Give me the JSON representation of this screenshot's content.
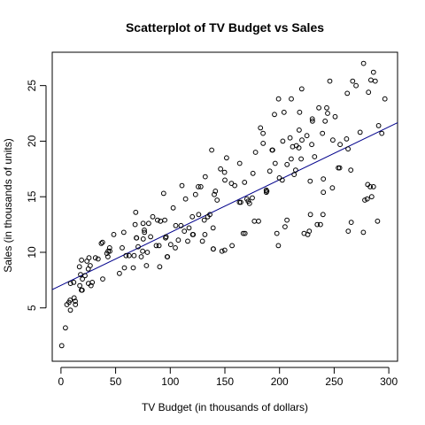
{
  "chart_data": {
    "type": "scatter",
    "title": "Scatterplot of TV Budget vs Sales",
    "xlabel": "TV Budget (in thousands of dollars)",
    "ylabel": "Sales (in thousands of units)",
    "xlim": [
      -8,
      308
    ],
    "ylim": [
      0.2,
      28.0
    ],
    "xticks": [
      0,
      50,
      100,
      150,
      200,
      250,
      300
    ],
    "yticks": [
      5,
      10,
      15,
      20,
      25
    ],
    "grid": false,
    "legend": "none",
    "marker": "open-circle",
    "point_color": "#000000",
    "fit_line": {
      "intercept": 7.03,
      "slope": 0.0475,
      "color": "#00008b"
    },
    "points": [
      [
        0.7,
        1.6
      ],
      [
        4.1,
        3.2
      ],
      [
        5.4,
        5.3
      ],
      [
        7.3,
        5.5
      ],
      [
        8.4,
        5.7
      ],
      [
        8.6,
        4.8
      ],
      [
        8.7,
        7.2
      ],
      [
        11.7,
        7.3
      ],
      [
        13.1,
        5.6
      ],
      [
        13.2,
        5.3
      ],
      [
        16.9,
        8.7
      ],
      [
        17.2,
        7.0
      ],
      [
        17.9,
        8.0
      ],
      [
        18.7,
        6.6
      ],
      [
        18.8,
        9.3
      ],
      [
        19.4,
        6.6
      ],
      [
        19.6,
        7.6
      ],
      [
        23.8,
        9.2
      ],
      [
        25.0,
        8.5
      ],
      [
        25.1,
        7.2
      ],
      [
        25.6,
        9.5
      ],
      [
        26.8,
        8.8
      ],
      [
        27.5,
        7.0
      ],
      [
        28.6,
        7.3
      ],
      [
        31.5,
        9.5
      ],
      [
        36.9,
        10.8
      ],
      [
        38.0,
        10.9
      ],
      [
        38.2,
        7.6
      ],
      [
        43.0,
        9.6
      ],
      [
        43.1,
        10.1
      ],
      [
        44.5,
        10.4
      ],
      [
        44.7,
        10.1
      ],
      [
        48.3,
        11.6
      ],
      [
        53.5,
        8.1
      ],
      [
        57.5,
        11.8
      ],
      [
        59.6,
        9.7
      ],
      [
        62.3,
        9.7
      ],
      [
        66.1,
        8.6
      ],
      [
        66.9,
        9.7
      ],
      [
        67.8,
        12.5
      ],
      [
        68.4,
        13.6
      ],
      [
        69.0,
        11.3
      ],
      [
        69.2,
        11.3
      ],
      [
        70.6,
        10.5
      ],
      [
        73.4,
        9.6
      ],
      [
        74.7,
        10.1
      ],
      [
        75.1,
        12.6
      ],
      [
        75.3,
        11.2
      ],
      [
        76.3,
        12.0
      ],
      [
        76.4,
        11.8
      ],
      [
        78.2,
        8.8
      ],
      [
        80.2,
        12.6
      ],
      [
        87.2,
        10.6
      ],
      [
        88.3,
        12.9
      ],
      [
        89.7,
        10.6
      ],
      [
        90.4,
        8.7
      ],
      [
        93.9,
        15.3
      ],
      [
        95.7,
        11.3
      ],
      [
        96.2,
        11.4
      ],
      [
        97.2,
        9.6
      ],
      [
        97.5,
        9.6
      ],
      [
        100.4,
        10.7
      ],
      [
        102.7,
        14.0
      ],
      [
        104.6,
        10.4
      ],
      [
        107.4,
        11.1
      ],
      [
        109.8,
        12.4
      ],
      [
        110.7,
        16.0
      ],
      [
        112.9,
        11.9
      ],
      [
        116.0,
        11.0
      ],
      [
        117.2,
        12.2
      ],
      [
        120.2,
        13.2
      ],
      [
        120.5,
        11.6
      ],
      [
        121.0,
        11.6
      ],
      [
        123.1,
        15.2
      ],
      [
        125.7,
        15.9
      ],
      [
        129.4,
        11.0
      ],
      [
        131.1,
        12.9
      ],
      [
        131.7,
        11.6
      ],
      [
        134.3,
        13.2
      ],
      [
        136.2,
        13.4
      ],
      [
        137.9,
        19.2
      ],
      [
        139.2,
        12.2
      ],
      [
        139.3,
        10.3
      ],
      [
        139.5,
        10.3
      ],
      [
        140.3,
        15.2
      ],
      [
        141.3,
        15.5
      ],
      [
        142.9,
        14.7
      ],
      [
        147.3,
        10.1
      ],
      [
        149.7,
        17.2
      ],
      [
        149.8,
        10.2
      ],
      [
        151.5,
        18.5
      ],
      [
        156.6,
        10.6
      ],
      [
        163.3,
        14.5
      ],
      [
        163.5,
        18.0
      ],
      [
        164.5,
        14.5
      ],
      [
        166.8,
        11.7
      ],
      [
        168.4,
        11.7
      ],
      [
        170.2,
        14.8
      ],
      [
        171.3,
        14.6
      ],
      [
        172.5,
        14.4
      ],
      [
        175.1,
        14.9
      ],
      [
        175.7,
        17.1
      ],
      [
        177.0,
        12.8
      ],
      [
        180.8,
        12.8
      ],
      [
        182.6,
        21.2
      ],
      [
        184.9,
        20.7
      ],
      [
        187.8,
        15.6
      ],
      [
        187.9,
        15.4
      ],
      [
        188.4,
        15.5
      ],
      [
        191.1,
        17.3
      ],
      [
        193.2,
        19.2
      ],
      [
        193.7,
        19.2
      ],
      [
        195.4,
        22.4
      ],
      [
        197.6,
        11.7
      ],
      [
        198.9,
        10.6
      ],
      [
        199.8,
        16.7
      ],
      [
        199.1,
        23.8
      ],
      [
        202.5,
        16.5
      ],
      [
        204.1,
        22.6
      ],
      [
        205.0,
        12.3
      ],
      [
        206.8,
        12.9
      ],
      [
        206.9,
        17.9
      ],
      [
        209.6,
        20.3
      ],
      [
        210.7,
        18.4
      ],
      [
        210.8,
        23.8
      ],
      [
        213.4,
        17.0
      ],
      [
        214.7,
        17.4
      ],
      [
        215.4,
        19.6
      ],
      [
        217.7,
        19.4
      ],
      [
        218.4,
        22.6
      ],
      [
        219.8,
        18.4
      ],
      [
        220.3,
        24.7
      ],
      [
        220.5,
        20.1
      ],
      [
        222.4,
        11.7
      ],
      [
        225.8,
        11.6
      ],
      [
        227.2,
        11.9
      ],
      [
        228.0,
        16.4
      ],
      [
        228.3,
        13.4
      ],
      [
        229.5,
        19.7
      ],
      [
        230.1,
        21.8
      ],
      [
        232.1,
        18.6
      ],
      [
        234.5,
        12.5
      ],
      [
        237.4,
        12.5
      ],
      [
        239.3,
        20.7
      ],
      [
        239.8,
        13.4
      ],
      [
        240.1,
        16.6
      ],
      [
        240.1,
        15.4
      ],
      [
        241.7,
        21.8
      ],
      [
        243.2,
        23.0
      ],
      [
        248.4,
        15.8
      ],
      [
        248.8,
        20.1
      ],
      [
        250.9,
        22.2
      ],
      [
        253.8,
        17.6
      ],
      [
        255.4,
        19.7
      ],
      [
        261.3,
        20.2
      ],
      [
        262.7,
        19.3
      ],
      [
        262.9,
        11.9
      ],
      [
        265.2,
        17.4
      ],
      [
        265.6,
        12.7
      ],
      [
        266.9,
        25.4
      ],
      [
        273.7,
        20.8
      ],
      [
        276.7,
        11.8
      ],
      [
        276.9,
        27.0
      ],
      [
        280.2,
        14.8
      ],
      [
        281.4,
        24.4
      ],
      [
        283.6,
        25.5
      ],
      [
        284.3,
        15.0
      ],
      [
        286.0,
        26.2
      ],
      [
        287.6,
        25.4
      ],
      [
        289.7,
        12.8
      ],
      [
        290.7,
        21.4
      ],
      [
        293.6,
        20.7
      ],
      [
        296.4,
        23.8
      ],
      [
        280.7,
        16.1
      ],
      [
        283.0,
        15.9
      ],
      [
        286.0,
        15.9
      ],
      [
        278.0,
        14.7
      ],
      [
        270.0,
        25.0
      ],
      [
        262.0,
        24.3
      ],
      [
        255.0,
        17.6
      ],
      [
        246.0,
        25.4
      ],
      [
        244.0,
        22.5
      ],
      [
        236.0,
        23.0
      ],
      [
        230.0,
        22.0
      ],
      [
        225.0,
        20.5
      ],
      [
        218.0,
        21.0
      ],
      [
        212.0,
        19.5
      ],
      [
        196.0,
        18.0
      ],
      [
        185.0,
        19.8
      ],
      [
        178.0,
        19.0
      ],
      [
        159.0,
        16.0
      ],
      [
        150.0,
        16.5
      ],
      [
        146.0,
        17.5
      ],
      [
        132.0,
        16.8
      ],
      [
        126.0,
        13.4
      ],
      [
        95.0,
        12.9
      ],
      [
        84.0,
        13.2
      ],
      [
        82.0,
        11.4
      ],
      [
        56.0,
        10.4
      ],
      [
        42.0,
        9.9
      ],
      [
        34.0,
        9.4
      ],
      [
        12.0,
        5.9
      ],
      [
        22.0,
        7.9
      ],
      [
        58.0,
        8.6
      ],
      [
        79.0,
        10.0
      ],
      [
        91.0,
        12.8
      ],
      [
        105.0,
        12.4
      ],
      [
        114.0,
        14.8
      ],
      [
        128.0,
        15.9
      ],
      [
        156.0,
        16.2
      ],
      [
        168.0,
        16.3
      ],
      [
        203.0,
        20.0
      ]
    ]
  }
}
